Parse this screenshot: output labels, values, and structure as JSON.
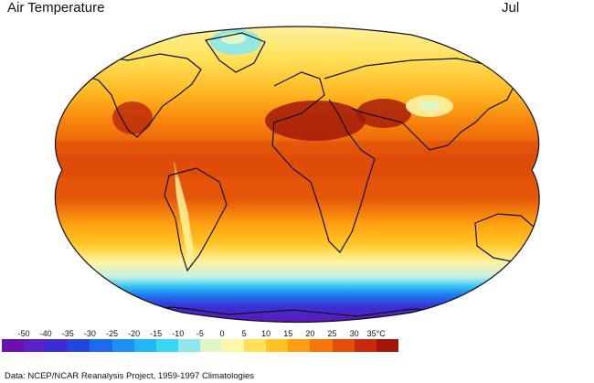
{
  "header": {
    "title": "Air Temperature",
    "month": "Jul"
  },
  "legend": {
    "ticks": [
      "-50",
      "-40",
      "-35",
      "-30",
      "-25",
      "-20",
      "-15",
      "-10",
      "-5",
      "0",
      "5",
      "10",
      "15",
      "20",
      "25",
      "30",
      "35°C"
    ],
    "colors": [
      "#6a0fb0",
      "#5a21c9",
      "#3d2bd6",
      "#2346e0",
      "#1c6aee",
      "#1e90f5",
      "#22b6f8",
      "#3ad7f4",
      "#8ee8ea",
      "#dff6c6",
      "#fff6a8",
      "#ffe05a",
      "#ffc21f",
      "#ff9e0e",
      "#f7760c",
      "#e34d0a",
      "#c7290a",
      "#a2150a"
    ]
  },
  "footer": {
    "source": "Data:  NCEP/NCAR Reanalysis Project, 1959-1997 Climatologies"
  }
}
